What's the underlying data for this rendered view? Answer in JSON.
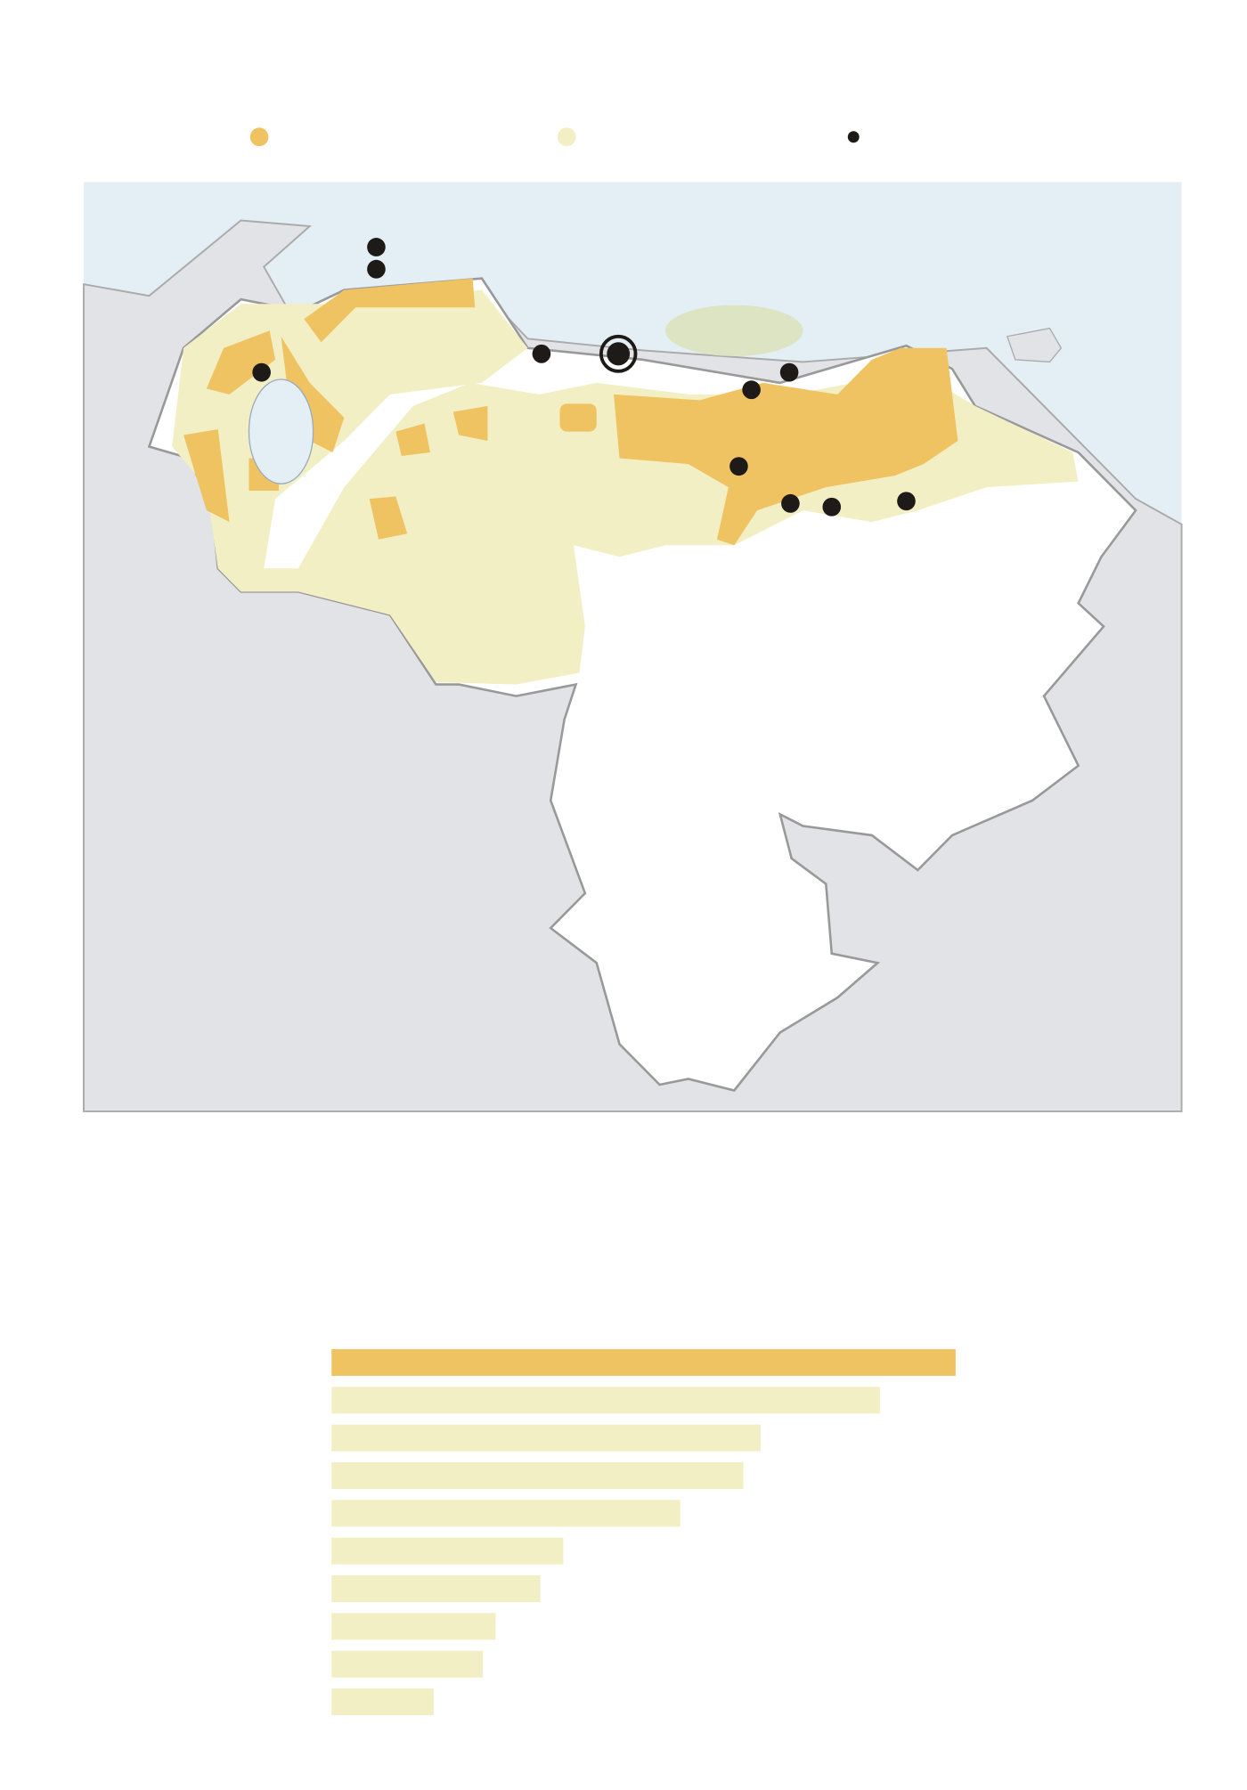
{
  "chart_data": {
    "type": "hbar",
    "values": [
      544,
      478,
      374,
      359,
      304,
      202,
      182,
      143,
      132,
      89
    ],
    "colors": [
      "#f0c362",
      "#f2efc4",
      "#f2efc4",
      "#f2efc4",
      "#f2efc4",
      "#f2efc4",
      "#f2efc4",
      "#f2efc4",
      "#f2efc4",
      "#f2efc4"
    ]
  }
}
